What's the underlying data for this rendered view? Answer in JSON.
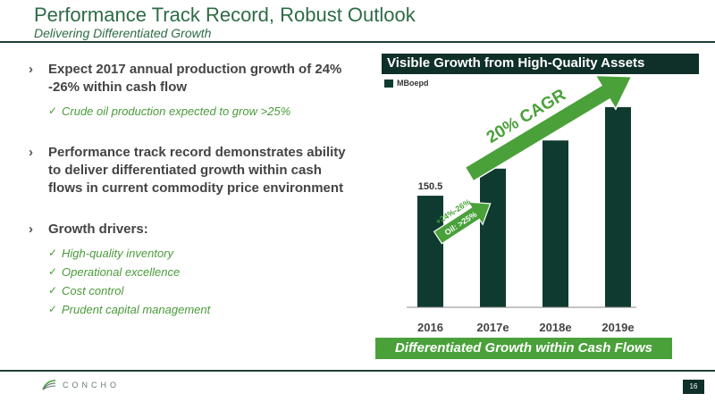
{
  "header": {
    "title": "Performance Track Record, Robust Outlook",
    "subtitle": "Delivering Differentiated Growth"
  },
  "bullets": {
    "b1": "Expect 2017 annual production growth of 24% -26% within cash flow",
    "b1_subs": [
      "Crude oil production expected to grow >25%"
    ],
    "b2": "Performance track record demonstrates ability to deliver differentiated growth within cash flows in current commodity price environment",
    "b3": "Growth drivers:",
    "b3_subs": [
      "High-quality inventory",
      "Operational excellence",
      "Cost control",
      "Prudent capital management"
    ]
  },
  "chart_panel": {
    "header": "Visible Growth from High-Quality Assets",
    "banner": "Differentiated Growth within Cash Flows"
  },
  "chart_data": {
    "type": "bar",
    "categories": [
      "2016",
      "2017e",
      "2018e",
      "2019e"
    ],
    "series": [
      {
        "name": "MBoepd",
        "values": [
          150.5,
          187,
          225,
          270
        ]
      }
    ],
    "data_labels": [
      "150.5",
      "",
      "",
      ""
    ],
    "ylim": [
      0,
      300
    ],
    "legend": "top-left",
    "annotations": {
      "cagr": "20% CAGR",
      "growth_line1": "+24%-26%",
      "growth_line2": "Oil: >25%"
    },
    "colors": {
      "bar": "#0f3a30",
      "arrow": "#4aa13a"
    }
  },
  "footer": {
    "logo_text": "CONCHO",
    "page_number": "16"
  }
}
